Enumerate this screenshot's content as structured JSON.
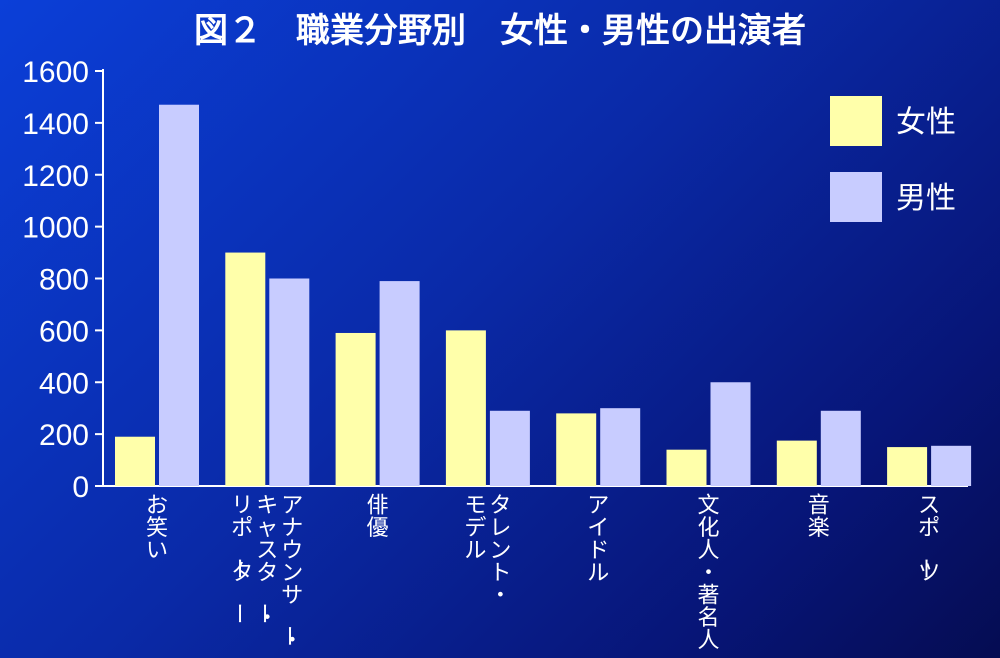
{
  "chart_data": {
    "type": "bar",
    "title": "図２　職業分野別　女性・男性の出演者",
    "categories": [
      "お笑い",
      "アナウンサー・キャスター・リポーター",
      "俳優",
      "タレント・モデル",
      "アイドル",
      "文化人・著名人",
      "音楽",
      "スポーツ"
    ],
    "category_label_lines": [
      [
        "お笑い"
      ],
      [
        "アナウンサー・",
        "キャスター・",
        "リポーター"
      ],
      [
        "俳優"
      ],
      [
        "タレント・",
        "モデル"
      ],
      [
        "アイドル"
      ],
      [
        "文化人・著名人"
      ],
      [
        "音楽"
      ],
      [
        "スポーツ"
      ]
    ],
    "series": [
      {
        "name": "女性",
        "color": "#ffffaa",
        "values": [
          190,
          900,
          590,
          600,
          280,
          140,
          175,
          150
        ]
      },
      {
        "name": "男性",
        "color": "#c8ccff",
        "values": [
          1470,
          800,
          790,
          290,
          300,
          400,
          290,
          155
        ]
      }
    ],
    "ylim": [
      0,
      1600
    ],
    "yticks": [
      "0",
      "200",
      "400",
      "600",
      "800",
      "1000",
      "1200",
      "1400",
      "1600"
    ],
    "grid": false,
    "legend_position": "top-right",
    "axis_color": "#ffffff"
  }
}
